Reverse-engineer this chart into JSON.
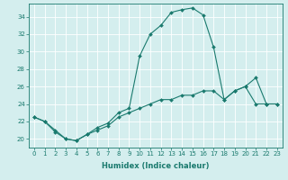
{
  "title": "",
  "xlabel": "Humidex (Indice chaleur)",
  "ylabel": "",
  "background_color": "#d4eeee",
  "line_color": "#1a7a6e",
  "xlim": [
    -0.5,
    23.5
  ],
  "ylim": [
    19.0,
    35.5
  ],
  "yticks": [
    20,
    22,
    24,
    26,
    28,
    30,
    32,
    34
  ],
  "xticks": [
    0,
    1,
    2,
    3,
    4,
    5,
    6,
    7,
    8,
    9,
    10,
    11,
    12,
    13,
    14,
    15,
    16,
    17,
    18,
    19,
    20,
    21,
    22,
    23
  ],
  "line1_x": [
    0,
    1,
    2,
    3,
    4,
    5,
    6,
    7,
    8,
    9,
    10,
    11,
    12,
    13,
    14,
    15,
    16,
    17,
    18,
    19,
    20,
    21,
    22,
    23
  ],
  "line1_y": [
    22.5,
    22.0,
    21.0,
    20.0,
    19.8,
    20.5,
    21.0,
    21.5,
    22.5,
    23.0,
    23.5,
    24.0,
    24.5,
    24.5,
    25.0,
    25.0,
    25.5,
    25.5,
    24.5,
    25.5,
    26.0,
    24.0,
    24.0,
    24.0
  ],
  "line2_x": [
    0,
    1,
    2,
    3,
    4,
    5,
    6,
    7,
    8,
    9,
    10,
    11,
    12,
    13,
    14,
    15,
    16,
    17,
    18,
    19,
    20,
    21,
    22,
    23
  ],
  "line2_y": [
    22.5,
    22.0,
    20.8,
    20.0,
    19.8,
    20.5,
    21.3,
    21.8,
    23.0,
    23.5,
    29.5,
    32.0,
    33.0,
    34.5,
    34.8,
    35.0,
    34.2,
    30.5,
    24.5,
    25.5,
    26.0,
    27.0,
    24.0,
    24.0
  ],
  "marker_size": 2.0,
  "line_width": 0.8,
  "tick_fontsize": 5.0,
  "xlabel_fontsize": 6.0
}
